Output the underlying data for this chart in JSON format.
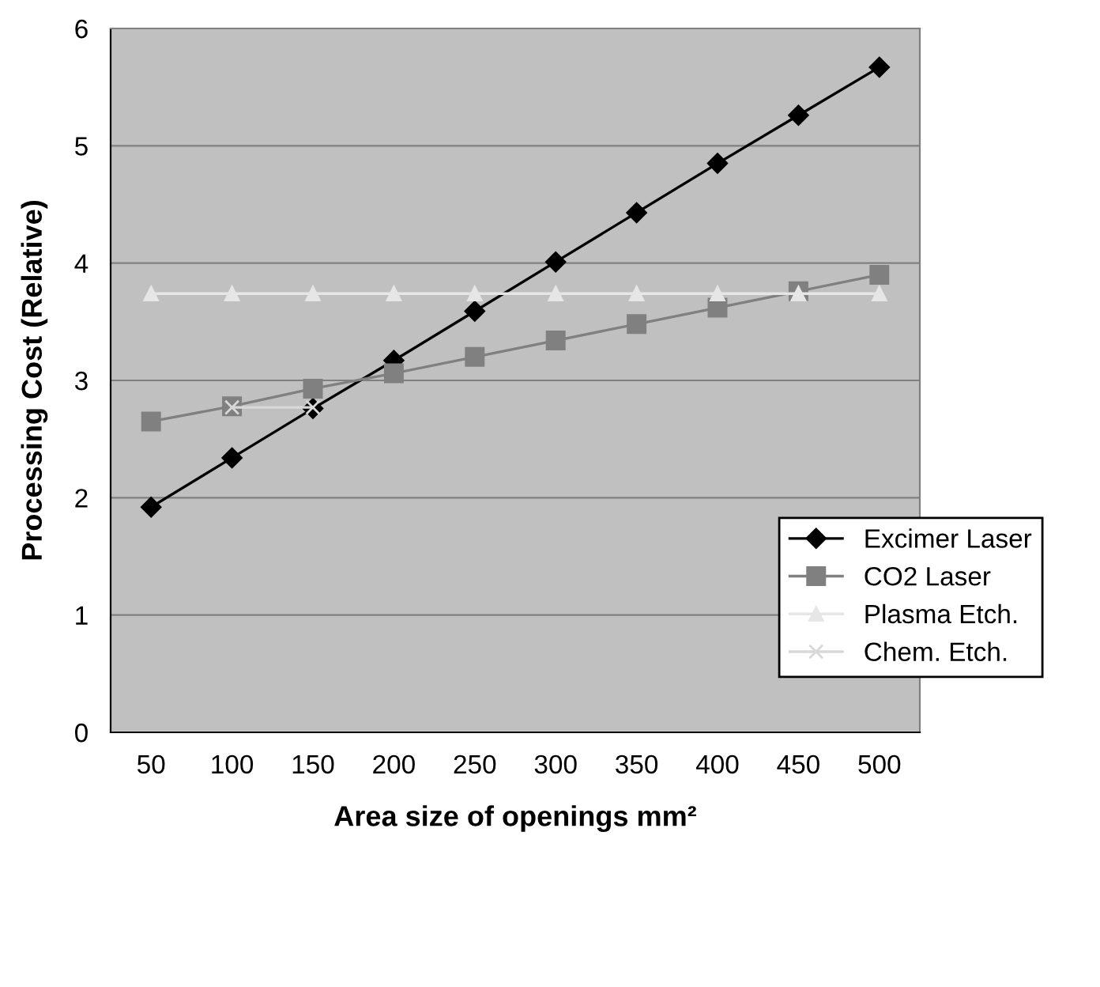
{
  "chart_data": {
    "type": "line",
    "xlabel": "Area size of openings mm²",
    "ylabel": "Processing Cost (Relative)",
    "categories": [
      "50",
      "100",
      "150",
      "200",
      "250",
      "300",
      "350",
      "400",
      "450",
      "500"
    ],
    "ylim": [
      0,
      6
    ],
    "yticks": [
      0,
      1,
      2,
      3,
      4,
      5,
      6
    ],
    "grid": "y",
    "legend": "bottom right",
    "series": [
      {
        "name": "Excimer Laser",
        "color": "#000000",
        "marker": "diamond",
        "values": [
          1.92,
          2.34,
          2.76,
          3.17,
          3.59,
          4.01,
          4.43,
          4.85,
          5.26,
          5.67
        ]
      },
      {
        "name": "CO2 Laser",
        "color": "#808080",
        "marker": "square",
        "values": [
          2.65,
          2.78,
          2.93,
          3.06,
          3.2,
          3.34,
          3.48,
          3.62,
          3.76,
          3.9
        ]
      },
      {
        "name": "Plasma Etch.",
        "color": "#e6e6e6",
        "marker": "triangle",
        "values": [
          3.74,
          3.74,
          3.74,
          3.74,
          3.74,
          3.74,
          3.74,
          3.74,
          3.74,
          3.74
        ]
      },
      {
        "name": "Chem. Etch.",
        "color": "#d8d8d8",
        "marker": "cross",
        "values": [
          null,
          2.77,
          2.77,
          null,
          null,
          null,
          null,
          null,
          null,
          null
        ]
      }
    ]
  }
}
